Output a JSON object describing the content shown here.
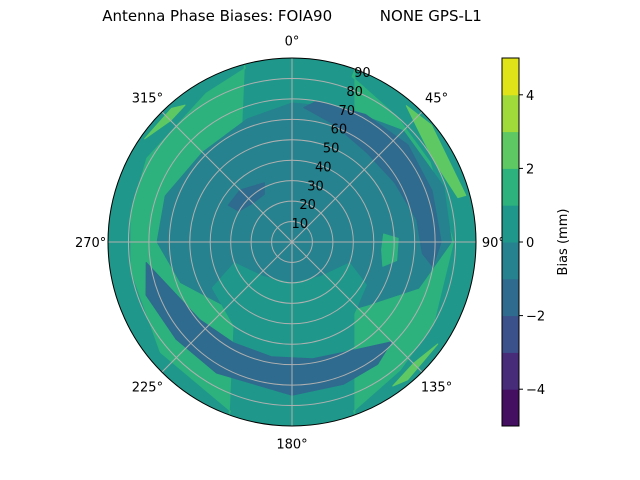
{
  "chart_data": {
    "type": "contour",
    "projection": "polar",
    "title": "Antenna Phase Biases: FOIA90          NONE GPS-L1",
    "theta_zero": "top",
    "theta_direction": "clockwise",
    "theta_ticks": [
      "0°",
      "45°",
      "90°",
      "135°",
      "180°",
      "225°",
      "270°",
      "315°"
    ],
    "theta_tick_values": [
      0,
      45,
      90,
      135,
      180,
      225,
      270,
      315
    ],
    "r_ticks": [
      "10",
      "20",
      "30",
      "40",
      "50",
      "60",
      "70",
      "80",
      "90"
    ],
    "r_tick_values": [
      10,
      20,
      30,
      40,
      50,
      60,
      70,
      80,
      90
    ],
    "rlim": [
      0,
      90
    ],
    "grid": true,
    "levels": [
      -5,
      -4,
      -3,
      -2,
      -1,
      0,
      1,
      2,
      3,
      4,
      5
    ],
    "level_colors": [
      "#440f60",
      "#472c7a",
      "#3b518b",
      "#2f6b8e",
      "#26828e",
      "#1f988b",
      "#2db27d",
      "#5ec962",
      "#9fda3a",
      "#dfe318"
    ],
    "colorbar": {
      "label": "Bias (mm)",
      "ticks": [
        "−4",
        "−2",
        "0",
        "2",
        "4"
      ],
      "tick_values": [
        -4,
        -2,
        0,
        2,
        4
      ],
      "range": [
        -5,
        5
      ]
    },
    "regions": [
      {
        "level": [
          0,
          1
        ],
        "fill": "disc"
      },
      {
        "level": [
          1,
          2
        ],
        "points": [
          [
            20,
            86
          ],
          [
            40,
            80
          ],
          [
            60,
            78
          ],
          [
            90,
            79
          ],
          [
            120,
            80
          ],
          [
            140,
            82
          ],
          [
            160,
            88
          ],
          [
            160,
            90
          ],
          [
            20,
            90
          ]
        ]
      },
      {
        "level": [
          1,
          2
        ],
        "points": [
          [
            200,
            88
          ],
          [
            230,
            84
          ],
          [
            260,
            80
          ],
          [
            280,
            80
          ],
          [
            300,
            82
          ],
          [
            330,
            84
          ],
          [
            345,
            88
          ],
          [
            345,
            90
          ],
          [
            200,
            90
          ]
        ]
      },
      {
        "level": [
          2,
          3
        ],
        "points": [
          [
            40,
            87
          ],
          [
            50,
            82
          ],
          [
            60,
            80
          ],
          [
            75,
            84
          ],
          [
            75,
            88
          ],
          [
            50,
            89
          ]
        ]
      },
      {
        "level": [
          2,
          3
        ],
        "points": [
          [
            305,
            88
          ],
          [
            315,
            84
          ],
          [
            322,
            85
          ],
          [
            318,
            88
          ]
        ]
      },
      {
        "level": [
          2,
          3
        ],
        "points": [
          [
            125,
            87
          ],
          [
            135,
            84
          ],
          [
            145,
            86
          ],
          [
            140,
            88
          ]
        ]
      },
      {
        "level": [
          -1,
          0
        ],
        "points": [
          [
            0,
            68
          ],
          [
            20,
            70
          ],
          [
            45,
            77
          ],
          [
            70,
            79
          ],
          [
            90,
            78
          ],
          [
            110,
            66
          ],
          [
            130,
            48
          ],
          [
            160,
            40
          ],
          [
            180,
            38
          ],
          [
            200,
            40
          ],
          [
            225,
            45
          ],
          [
            250,
            58
          ],
          [
            270,
            66
          ],
          [
            290,
            66
          ],
          [
            315,
            62
          ],
          [
            340,
            64
          ],
          [
            360,
            68
          ]
        ]
      },
      {
        "level": [
          0,
          1
        ],
        "points": [
          [
            110,
            30
          ],
          [
            140,
            22
          ],
          [
            180,
            20
          ],
          [
            220,
            22
          ],
          [
            250,
            30
          ],
          [
            240,
            45
          ],
          [
            210,
            52
          ],
          [
            180,
            54
          ],
          [
            150,
            52
          ],
          [
            120,
            42
          ]
        ]
      },
      {
        "level": [
          1,
          2
        ],
        "points": [
          [
            85,
            45
          ],
          [
            95,
            44
          ],
          [
            105,
            46
          ],
          [
            100,
            52
          ],
          [
            88,
            52
          ]
        ]
      },
      {
        "level": [
          -2,
          -1
        ],
        "points": [
          [
            5,
            66
          ],
          [
            20,
            61
          ],
          [
            40,
            57
          ],
          [
            60,
            58
          ],
          [
            80,
            62
          ],
          [
            95,
            64
          ],
          [
            100,
            70
          ],
          [
            90,
            73
          ],
          [
            70,
            73
          ],
          [
            50,
            74
          ],
          [
            30,
            72
          ],
          [
            10,
            70
          ]
        ]
      },
      {
        "level": [
          -2,
          -1
        ],
        "points": [
          [
            135,
            69
          ],
          [
            150,
            61
          ],
          [
            170,
            58
          ],
          [
            190,
            57
          ],
          [
            210,
            57
          ],
          [
            230,
            59
          ],
          [
            250,
            64
          ],
          [
            262,
            72
          ],
          [
            250,
            76
          ],
          [
            230,
            74
          ],
          [
            210,
            74
          ],
          [
            180,
            75
          ],
          [
            160,
            74
          ],
          [
            145,
            73
          ]
        ]
      },
      {
        "level": [
          -2,
          -1
        ],
        "points": [
          [
            300,
            30
          ],
          [
            315,
            27
          ],
          [
            330,
            27
          ],
          [
            335,
            32
          ],
          [
            315,
            36
          ],
          [
            300,
            36
          ]
        ]
      }
    ]
  }
}
